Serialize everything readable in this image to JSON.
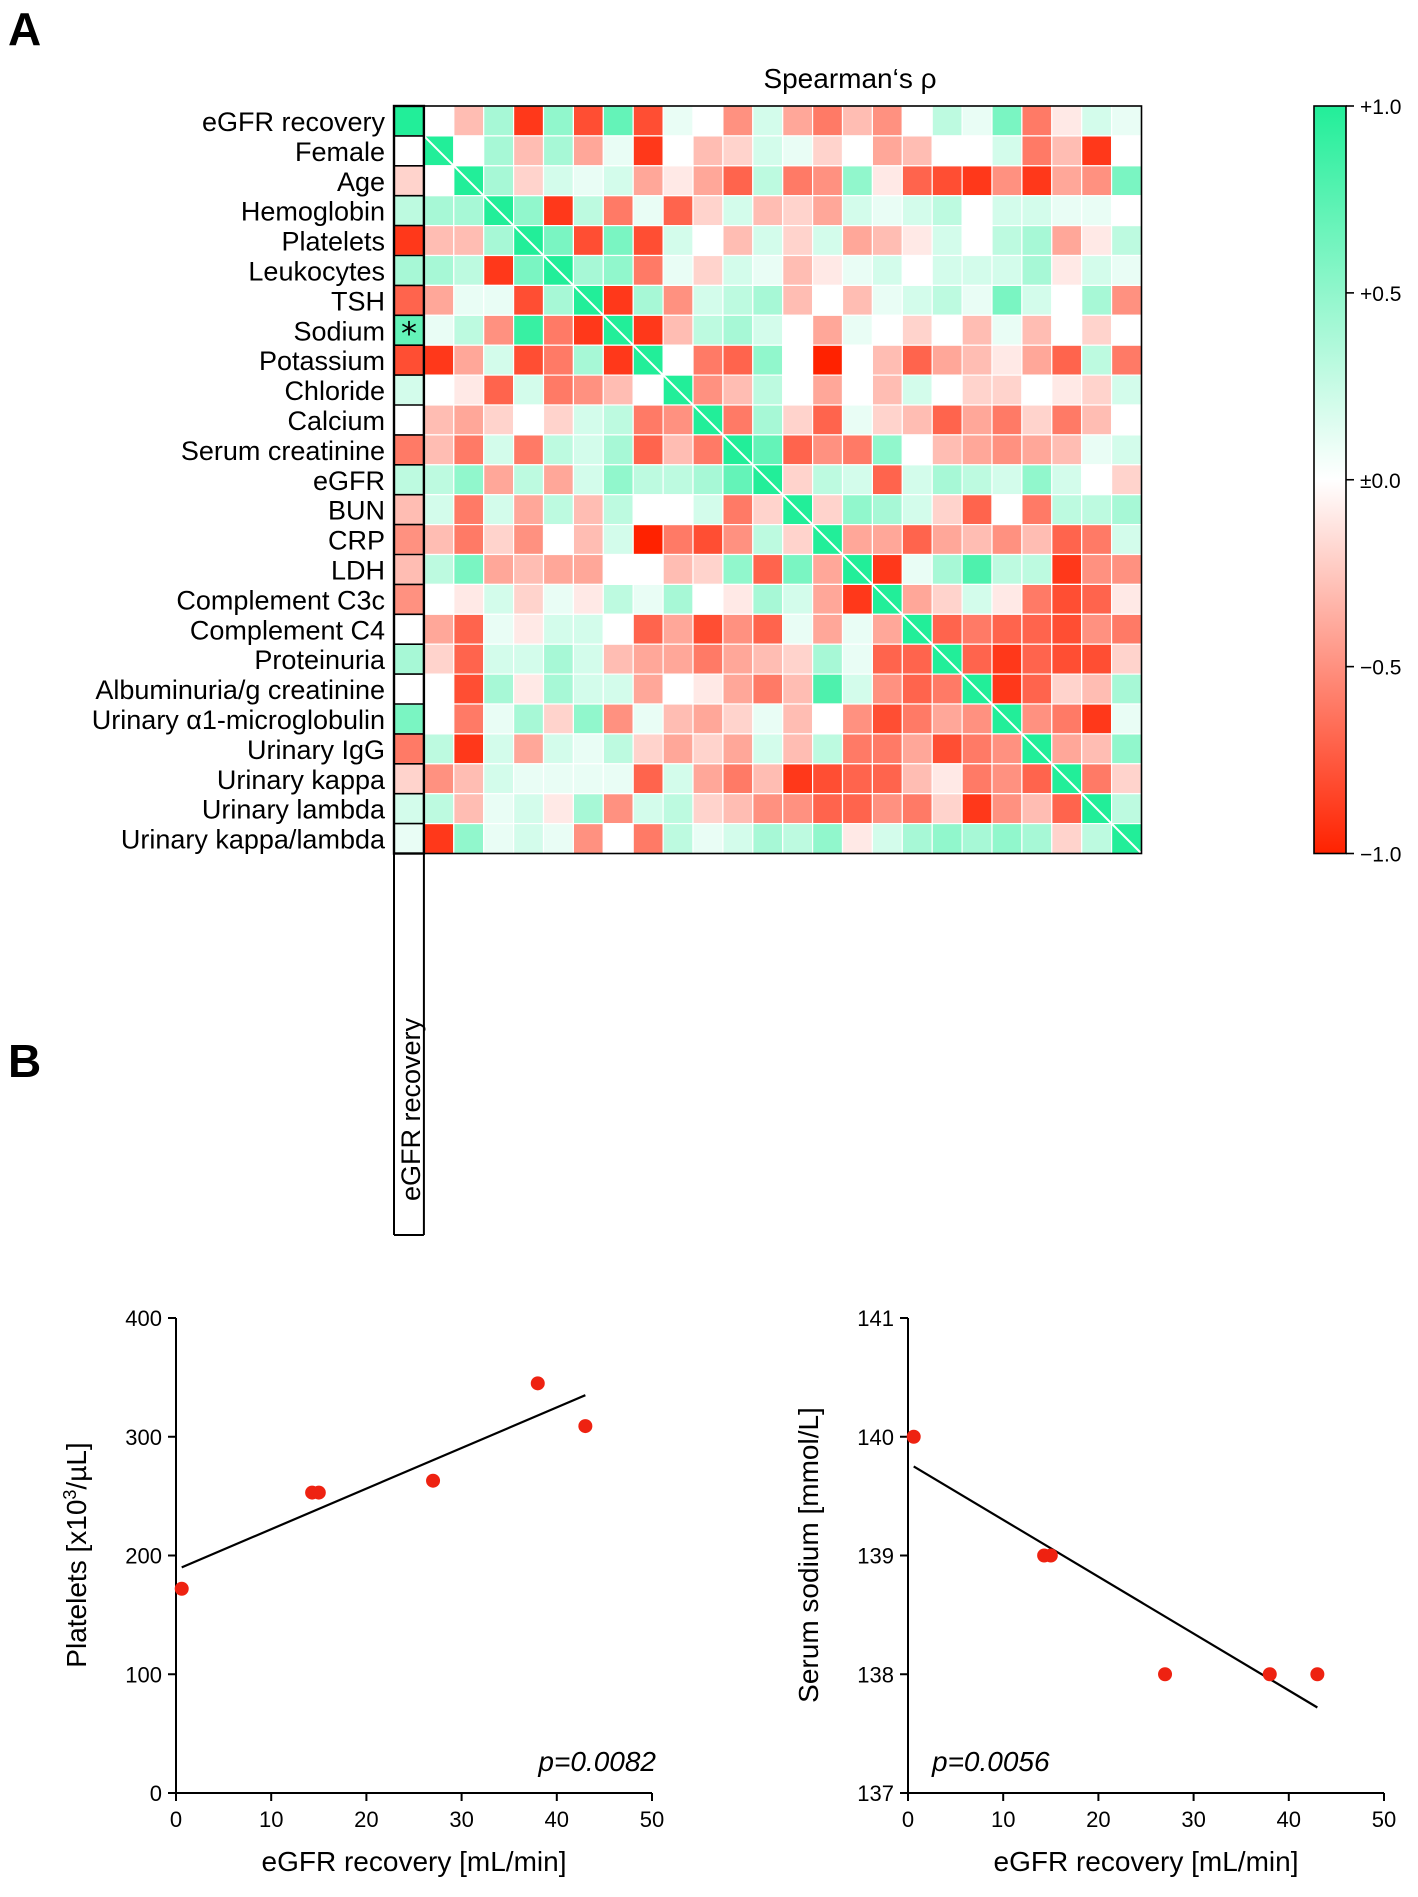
{
  "panel_a_label": "A",
  "panel_b_label": "B",
  "chart_data": [
    {
      "type": "heatmap",
      "title": "Spearman‘s ρ",
      "row_labels": [
        "eGFR recovery",
        "Female",
        "Age",
        "Hemoglobin",
        "Platelets",
        "Leukocytes",
        "TSH",
        "Sodium",
        "Potassium",
        "Chloride",
        "Calcium",
        "Serum creatinine",
        "eGFR",
        "BUN",
        "CRP",
        "LDH",
        "Complement C3c",
        "Complement C4",
        "Proteinuria",
        "Albuminuria/g creatinine",
        "Urinary α1-microglobulin",
        "Urinary IgG",
        "Urinary kappa",
        "Urinary lambda",
        "Urinary kappa/lambda"
      ],
      "column_label_shown": "eGFR recovery",
      "significance_marker": {
        "row": "Sodium",
        "column": "eGFR recovery",
        "text": "*"
      },
      "highlighted_column": "eGFR recovery",
      "colorbar": {
        "min": -1.0,
        "max": 1.0,
        "ticks": [
          1.0,
          0.5,
          0.0,
          -0.5,
          -1.0
        ],
        "tick_labels": [
          "+1.0",
          "+0.5",
          "±0.0",
          "−0.5",
          "−1.0"
        ],
        "neg_color": "#ff2200",
        "zero_color": "#ffffff",
        "pos_color": "#22ee99"
      },
      "values": [
        [
          1.0,
          0.0,
          -0.3,
          0.4,
          -0.9,
          0.5,
          -0.8,
          0.7,
          -0.8,
          0.1,
          0.0,
          -0.5,
          0.2,
          -0.4,
          -0.6,
          -0.3,
          -0.5,
          0.0,
          0.3,
          0.1,
          0.6,
          -0.6,
          -0.1,
          0.2,
          0.1
        ],
        [
          0.0,
          1.0,
          0.0,
          0.4,
          -0.3,
          0.4,
          -0.4,
          0.1,
          -0.9,
          0.0,
          -0.3,
          -0.2,
          0.2,
          0.1,
          -0.2,
          0.0,
          -0.4,
          -0.3,
          0.0,
          0.0,
          0.2,
          -0.6,
          -0.3,
          -0.9,
          0.0
        ],
        [
          -0.2,
          0.0,
          1.0,
          0.4,
          -0.2,
          0.2,
          0.1,
          0.2,
          -0.4,
          -0.1,
          -0.4,
          -0.7,
          0.3,
          -0.6,
          -0.5,
          0.5,
          -0.1,
          -0.7,
          -0.8,
          -0.9,
          -0.5,
          -0.9,
          -0.4,
          -0.5,
          0.6
        ],
        [
          0.3,
          0.4,
          0.4,
          1.0,
          0.5,
          -0.9,
          0.3,
          -0.6,
          0.1,
          -0.7,
          -0.2,
          0.2,
          -0.3,
          -0.2,
          -0.4,
          0.2,
          0.1,
          0.2,
          0.3,
          0.0,
          0.2,
          0.2,
          0.1,
          0.1,
          0.0
        ],
        [
          -0.9,
          -0.3,
          -0.3,
          0.4,
          1.0,
          0.6,
          -0.8,
          0.6,
          -0.8,
          0.2,
          0.0,
          -0.3,
          0.2,
          -0.2,
          0.2,
          -0.4,
          -0.3,
          -0.1,
          0.2,
          0.0,
          0.3,
          0.4,
          -0.4,
          -0.1,
          0.3
        ],
        [
          0.4,
          0.4,
          0.3,
          -0.9,
          0.6,
          1.0,
          0.4,
          0.5,
          -0.6,
          0.1,
          -0.2,
          0.2,
          0.1,
          -0.3,
          -0.1,
          0.1,
          0.2,
          0.0,
          0.2,
          0.2,
          0.2,
          0.4,
          -0.1,
          0.2,
          0.1
        ],
        [
          -0.7,
          -0.4,
          0.1,
          0.1,
          -0.8,
          0.4,
          1.0,
          -0.9,
          0.4,
          -0.5,
          0.2,
          0.3,
          0.4,
          -0.3,
          0.0,
          -0.3,
          0.1,
          0.2,
          0.3,
          0.1,
          0.6,
          0.2,
          0.0,
          0.4,
          -0.5
        ],
        [
          0.7,
          0.1,
          0.3,
          -0.5,
          0.9,
          -0.6,
          -0.9,
          1.0,
          -0.9,
          -0.3,
          0.3,
          0.4,
          0.2,
          0.0,
          -0.4,
          0.1,
          0.0,
          -0.2,
          0.0,
          -0.3,
          0.1,
          -0.3,
          0.0,
          -0.2,
          0.0
        ],
        [
          -0.8,
          -0.9,
          -0.4,
          0.2,
          -0.8,
          -0.6,
          0.4,
          -0.9,
          1.0,
          0.0,
          -0.6,
          -0.7,
          0.5,
          0.0,
          -1.0,
          0.0,
          -0.3,
          -0.7,
          -0.4,
          -0.3,
          -0.1,
          -0.4,
          -0.7,
          0.3,
          -0.6
        ],
        [
          0.2,
          0.0,
          -0.1,
          -0.7,
          0.2,
          -0.6,
          -0.5,
          -0.3,
          0.0,
          1.0,
          -0.5,
          -0.3,
          0.3,
          0.0,
          -0.4,
          0.0,
          -0.3,
          0.2,
          0.0,
          -0.2,
          -0.2,
          0.0,
          -0.1,
          -0.2,
          0.2
        ],
        [
          0.0,
          -0.3,
          -0.4,
          -0.2,
          0.0,
          -0.2,
          0.2,
          0.3,
          -0.6,
          -0.5,
          1.0,
          -0.6,
          0.4,
          -0.2,
          -0.7,
          0.1,
          -0.2,
          -0.3,
          -0.7,
          -0.4,
          -0.6,
          -0.2,
          -0.6,
          -0.3,
          0.0
        ],
        [
          -0.6,
          -0.3,
          -0.6,
          0.2,
          -0.6,
          0.3,
          0.2,
          0.4,
          -0.7,
          -0.3,
          -0.6,
          1.0,
          0.7,
          -0.7,
          -0.5,
          -0.6,
          0.5,
          0.0,
          -0.3,
          -0.4,
          -0.5,
          -0.4,
          -0.3,
          0.1,
          0.2
        ],
        [
          0.3,
          0.3,
          0.5,
          -0.4,
          0.3,
          -0.4,
          0.2,
          0.5,
          0.3,
          0.3,
          0.4,
          0.7,
          1.0,
          -0.2,
          0.3,
          0.2,
          -0.7,
          0.2,
          0.4,
          0.3,
          0.2,
          0.5,
          0.2,
          0.0,
          -0.2
        ],
        [
          -0.3,
          0.2,
          -0.6,
          0.2,
          -0.4,
          0.3,
          -0.3,
          0.3,
          0.0,
          0.0,
          0.2,
          -0.6,
          -0.2,
          1.0,
          -0.2,
          0.5,
          0.4,
          0.2,
          -0.2,
          -0.7,
          0.0,
          -0.6,
          0.3,
          0.3,
          0.4
        ],
        [
          -0.5,
          -0.3,
          -0.6,
          -0.2,
          -0.5,
          0.0,
          -0.3,
          0.2,
          -1.0,
          -0.6,
          -0.8,
          -0.5,
          0.3,
          -0.2,
          1.0,
          -0.4,
          -0.4,
          -0.7,
          -0.4,
          -0.3,
          -0.5,
          -0.3,
          -0.7,
          -0.6,
          0.2
        ],
        [
          -0.3,
          0.3,
          0.6,
          -0.4,
          -0.3,
          -0.4,
          -0.4,
          0.0,
          0.0,
          -0.3,
          -0.2,
          0.5,
          -0.7,
          0.6,
          -0.4,
          1.0,
          -0.9,
          0.1,
          0.4,
          0.8,
          0.3,
          0.3,
          -0.9,
          -0.5,
          -0.5
        ],
        [
          -0.5,
          0.0,
          -0.1,
          0.2,
          -0.2,
          0.1,
          -0.1,
          0.3,
          0.1,
          0.4,
          0.0,
          -0.1,
          0.4,
          0.2,
          -0.4,
          -0.9,
          1.0,
          -0.4,
          -0.2,
          0.2,
          -0.1,
          -0.6,
          -0.8,
          -0.7,
          -0.1
        ],
        [
          0.0,
          -0.4,
          -0.7,
          0.1,
          -0.1,
          0.2,
          0.2,
          0.0,
          -0.7,
          -0.4,
          -0.8,
          -0.5,
          -0.7,
          0.1,
          -0.4,
          0.1,
          -0.4,
          1.0,
          -0.7,
          -0.6,
          -0.7,
          -0.7,
          -0.8,
          -0.5,
          -0.6
        ],
        [
          0.4,
          -0.2,
          -0.7,
          0.2,
          0.2,
          0.4,
          0.2,
          -0.3,
          -0.4,
          -0.4,
          -0.6,
          -0.4,
          -0.3,
          -0.2,
          0.4,
          0.1,
          -0.7,
          -0.7,
          1.0,
          -0.7,
          -0.9,
          -0.7,
          -0.8,
          -0.8,
          -0.2
        ],
        [
          0.0,
          0.0,
          -0.8,
          0.4,
          -0.1,
          0.4,
          0.2,
          0.2,
          -0.4,
          0.0,
          -0.1,
          -0.4,
          -0.6,
          -0.3,
          0.8,
          0.2,
          -0.5,
          -0.7,
          -0.6,
          1.0,
          -0.9,
          -0.7,
          -0.2,
          -0.3,
          0.4
        ],
        [
          0.6,
          0.0,
          -0.6,
          0.1,
          0.4,
          -0.2,
          0.5,
          -0.5,
          0.1,
          -0.3,
          -0.4,
          -0.2,
          0.1,
          -0.3,
          0.0,
          -0.5,
          -0.8,
          -0.6,
          -0.4,
          -0.5,
          1.0,
          -0.5,
          -0.6,
          -0.9,
          0.1
        ],
        [
          -0.6,
          0.3,
          -0.9,
          0.2,
          -0.4,
          0.2,
          0.1,
          0.3,
          -0.2,
          -0.4,
          -0.2,
          -0.4,
          0.2,
          -0.3,
          0.3,
          -0.6,
          -0.6,
          -0.4,
          -0.8,
          -0.6,
          -0.5,
          1.0,
          -0.4,
          -0.3,
          0.5
        ],
        [
          -0.2,
          -0.5,
          -0.3,
          0.2,
          0.1,
          0.1,
          0.1,
          0.1,
          -0.7,
          0.2,
          -0.4,
          -0.6,
          -0.3,
          -0.9,
          -0.8,
          -0.7,
          -0.7,
          -0.3,
          -0.1,
          -0.6,
          -0.5,
          -0.7,
          1.0,
          -0.6,
          -0.2
        ],
        [
          0.2,
          0.3,
          -0.3,
          0.1,
          0.2,
          -0.1,
          0.4,
          -0.5,
          0.2,
          0.3,
          -0.2,
          -0.3,
          -0.5,
          -0.5,
          -0.7,
          -0.7,
          -0.5,
          -0.6,
          -0.2,
          -0.9,
          -0.5,
          -0.3,
          -0.7,
          1.0,
          0.3
        ],
        [
          0.1,
          -0.9,
          0.5,
          0.1,
          0.2,
          0.1,
          -0.5,
          0.0,
          -0.6,
          0.3,
          0.1,
          0.2,
          0.4,
          0.3,
          0.5,
          -0.1,
          0.2,
          0.4,
          0.5,
          0.4,
          0.5,
          0.4,
          -0.2,
          0.3,
          1.0
        ]
      ]
    },
    {
      "type": "scatter",
      "xlabel": "eGFR recovery  [mL/min]",
      "ylabel_prefix": "Platelets [x10",
      "ylabel_sup": "3",
      "ylabel_suffix": "/µL]",
      "xlim": [
        0,
        50
      ],
      "ylim": [
        0,
        400
      ],
      "xticks": [
        0,
        10,
        20,
        30,
        40,
        50
      ],
      "yticks": [
        0,
        100,
        200,
        300,
        400
      ],
      "points": [
        [
          0.6,
          172
        ],
        [
          14.3,
          253
        ],
        [
          15.0,
          253
        ],
        [
          27.0,
          263
        ],
        [
          38.0,
          345
        ],
        [
          43.0,
          309
        ]
      ],
      "fit_line": [
        [
          0.6,
          190
        ],
        [
          43.0,
          335
        ]
      ],
      "annotation": "p=0.0082",
      "point_color": "#ee2211"
    },
    {
      "type": "scatter",
      "xlabel": "eGFR recovery  [mL/min]",
      "ylabel": "Serum sodium [mmol/L]",
      "xlim": [
        0,
        50
      ],
      "ylim": [
        137,
        141
      ],
      "xticks": [
        0,
        10,
        20,
        30,
        40,
        50
      ],
      "yticks": [
        137,
        138,
        139,
        140,
        141
      ],
      "points": [
        [
          0.6,
          140
        ],
        [
          14.3,
          139
        ],
        [
          15.0,
          139
        ],
        [
          27.0,
          138
        ],
        [
          38.0,
          138
        ],
        [
          43.0,
          138
        ]
      ],
      "fit_line": [
        [
          0.6,
          139.75
        ],
        [
          43.0,
          137.72
        ]
      ],
      "annotation": "p=0.0056",
      "point_color": "#ee2211"
    }
  ]
}
